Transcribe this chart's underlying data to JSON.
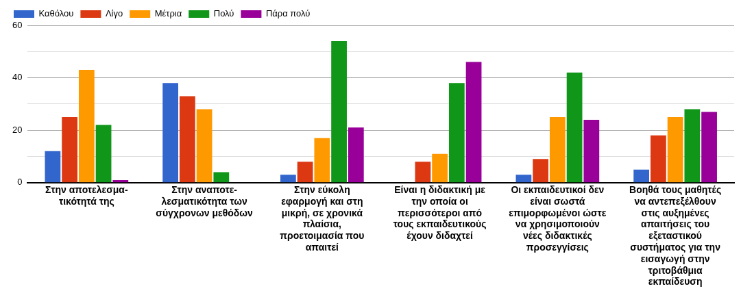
{
  "chart_data": {
    "type": "bar",
    "categories": [
      "Στην αποτελεσμα- τικότητά της",
      "Στην αναποτε- λεσματικότητα των σύγχρονων μεθόδων",
      "Στην εύκολη εφαρμογή και στη μικρή, σε χρονικά πλαίσια, προετοιμασία που απαιτεί",
      "Είναι η διδακτική με την οποία οι περισσότεροι από τους εκπαιδευτικούς έχουν διδαχτεί",
      "Οι εκπαιδευτικοί δεν είναι σωστά επιμορφωμένοι ώστε να χρησιμοποιούν νέες διδακτικές προσεγγίσεις",
      "Βοηθά τους μαθητές να αντεπεξέλθουν στις αυξημένες απαιτήσεις του εξεταστικού συστήματος για την εισαγωγή στην τριτοβάθμια εκπαίδευση"
    ],
    "series": [
      {
        "name": "Καθόλου",
        "color": "#3366cc",
        "values": [
          12,
          38,
          3,
          0,
          3,
          5
        ]
      },
      {
        "name": "Λίγο",
        "color": "#dc3912",
        "values": [
          25,
          33,
          8,
          8,
          9,
          18
        ]
      },
      {
        "name": "Μέτρια",
        "color": "#ff9900",
        "values": [
          43,
          28,
          17,
          11,
          25,
          25
        ]
      },
      {
        "name": "Πολύ",
        "color": "#109618",
        "values": [
          22,
          4,
          54,
          38,
          42,
          28
        ]
      },
      {
        "name": "Πάρα πολύ",
        "color": "#990099",
        "values": [
          1,
          0,
          21,
          46,
          24,
          27
        ]
      }
    ],
    "ylim": [
      0,
      60
    ],
    "yticks": [
      0,
      {
        "value": 10,
        "label": null
      },
      20,
      {
        "value": 30,
        "label": null
      },
      40,
      {
        "value": 50,
        "label": null
      },
      60
    ],
    "grid": "y",
    "legend": "top left"
  }
}
